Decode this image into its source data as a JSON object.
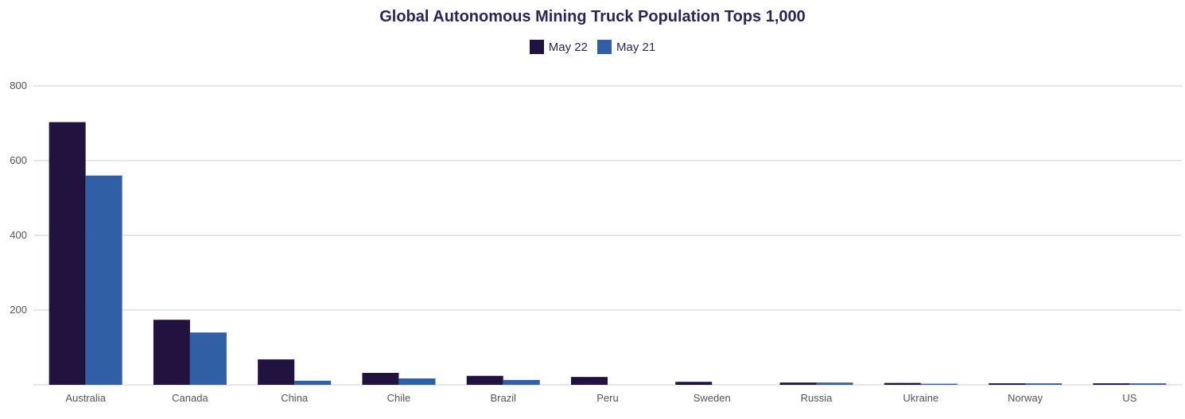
{
  "chart_data": {
    "type": "bar",
    "title": "Global Autonomous Mining Truck Population Tops 1,000",
    "xlabel": "",
    "ylabel": "",
    "ylim": [
      0,
      800
    ],
    "yticks": [
      200,
      400,
      600,
      800
    ],
    "grid": true,
    "legend_position": "top-center",
    "categories": [
      "Australia",
      "Canada",
      "China",
      "Chile",
      "Brazil",
      "Peru",
      "Sweden",
      "Russia",
      "Ukraine",
      "Norway",
      "US"
    ],
    "series": [
      {
        "name": "May 22",
        "color": "#221240",
        "values": [
          703,
          174,
          68,
          32,
          24,
          21,
          8,
          6,
          5,
          4,
          4
        ]
      },
      {
        "name": "May 21",
        "color": "#315fa5",
        "values": [
          560,
          140,
          11,
          17,
          13,
          0,
          0,
          6,
          3,
          4,
          4
        ]
      }
    ]
  }
}
